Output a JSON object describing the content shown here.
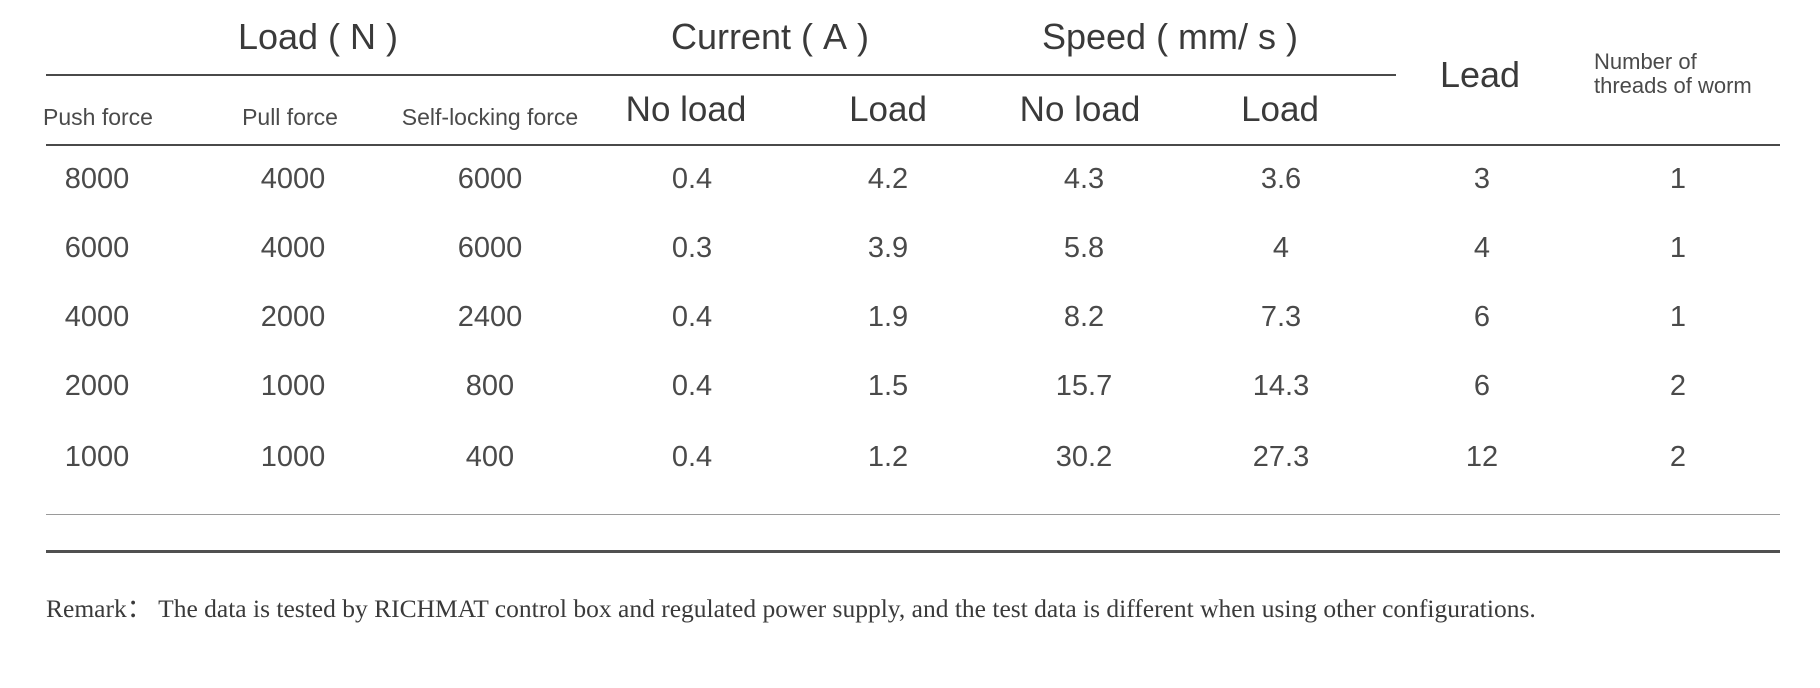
{
  "table": {
    "group_headers": {
      "load": "Load ( N )",
      "current": "Current ( A )",
      "speed": "Speed ( mm/ s )"
    },
    "sub_headers": {
      "push_force": "Push force",
      "pull_force": "Pull force",
      "self_locking_force": "Self-locking force",
      "current_no_load": "No load",
      "current_load": "Load",
      "speed_no_load": "No load",
      "speed_load": "Load"
    },
    "lead_header": "Lead",
    "threads_header_line1": "Number of",
    "threads_header_line2": "threads of worm",
    "rows": [
      [
        "8000",
        "4000",
        "6000",
        "0.4",
        "4.2",
        "4.3",
        "3.6",
        "3",
        "1"
      ],
      [
        "6000",
        "4000",
        "6000",
        "0.3",
        "3.9",
        "5.8",
        "4",
        "4",
        "1"
      ],
      [
        "4000",
        "2000",
        "2400",
        "0.4",
        "1.9",
        "8.2",
        "7.3",
        "6",
        "1"
      ],
      [
        "2000",
        "1000",
        "800",
        "0.4",
        "1.5",
        "15.7",
        "14.3",
        "6",
        "2"
      ],
      [
        "1000",
        "1000",
        "400",
        "0.4",
        "1.2",
        "30.2",
        "27.3",
        "12",
        "2"
      ]
    ]
  },
  "remark": "Remark： The data is tested by RICHMAT control box and regulated power supply, and the test data is different when using other configurations."
}
